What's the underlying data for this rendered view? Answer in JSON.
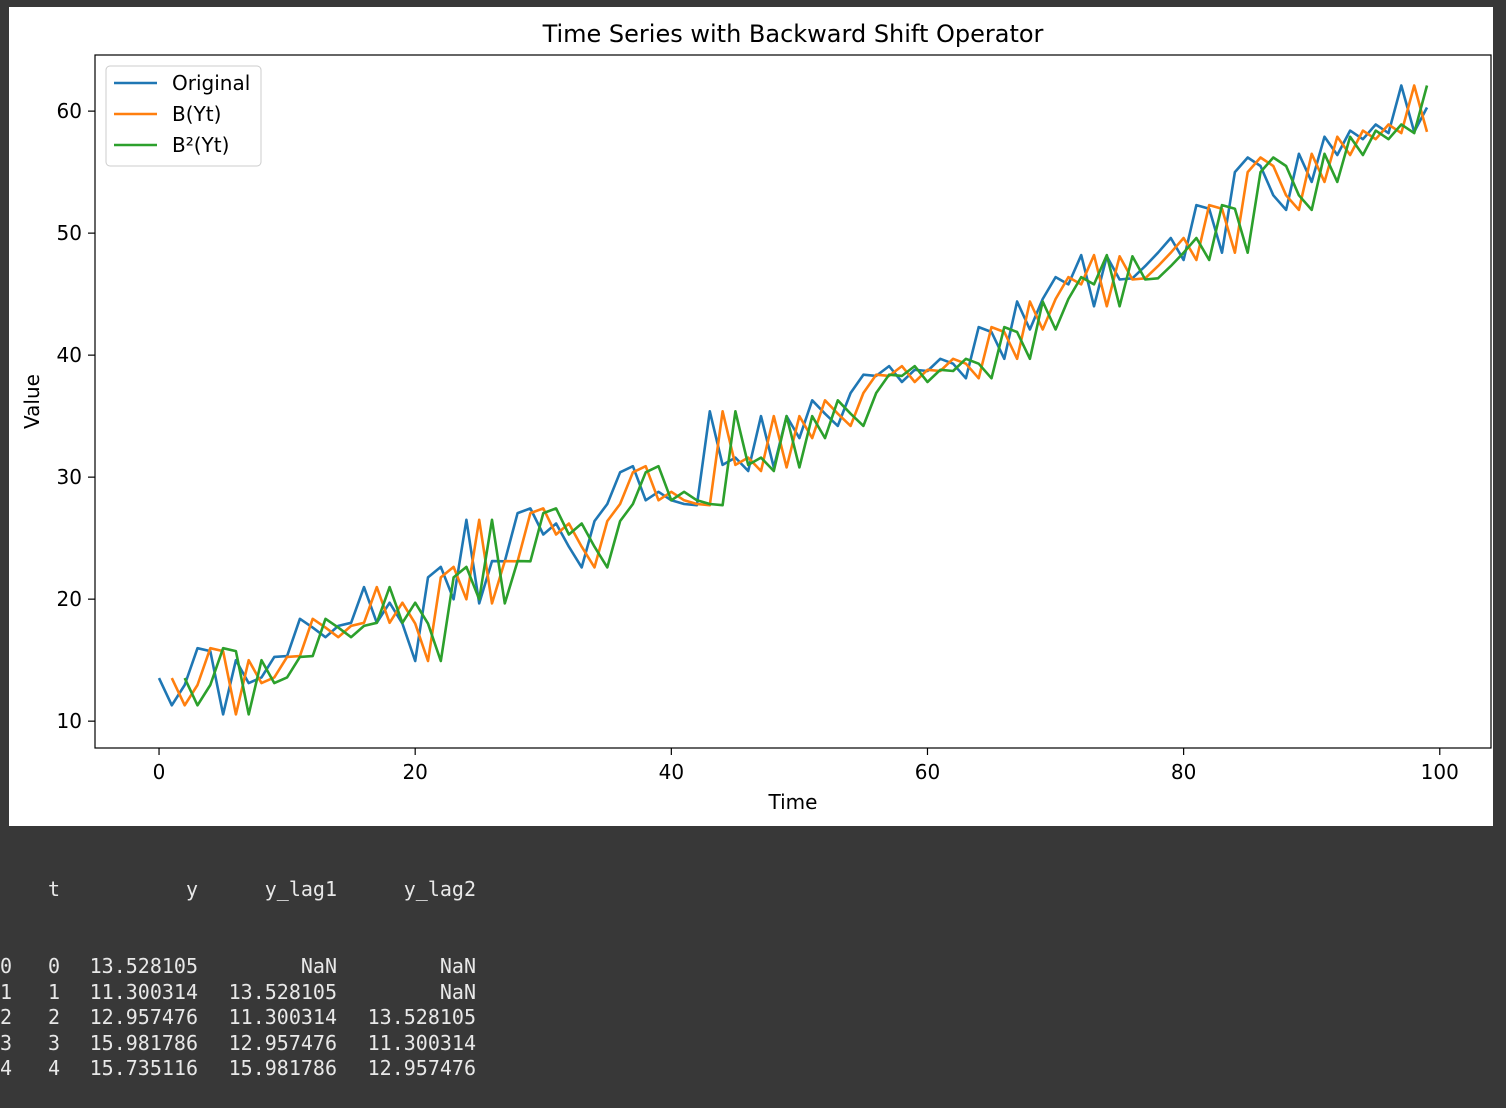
{
  "chart_data": {
    "type": "line",
    "title": "Time Series with Backward Shift Operator",
    "xlabel": "Time",
    "ylabel": "Value",
    "xlim": [
      -5,
      104
    ],
    "ylim": [
      7.8,
      64.6
    ],
    "xticks": [
      0,
      20,
      40,
      60,
      80,
      100
    ],
    "yticks": [
      10,
      20,
      30,
      40,
      50,
      60
    ],
    "grid": false,
    "legend": "upper-left",
    "series": [
      {
        "name": "Original",
        "color": "#1f77b4",
        "start": 0
      },
      {
        "name": "B(Yt)",
        "color": "#ff7f0e",
        "start": 1
      },
      {
        "name": "B²(Yt)",
        "color": "#2ca02c",
        "start": 2
      }
    ],
    "y": [
      13.53,
      11.3,
      12.96,
      15.98,
      15.74,
      10.55,
      15.0,
      13.12,
      13.59,
      15.27,
      15.33,
      18.39,
      17.67,
      16.88,
      17.81,
      18.06,
      20.99,
      18.06,
      19.71,
      18.0,
      14.93,
      21.78,
      22.64,
      19.99,
      26.5,
      19.65,
      23.12,
      23.1,
      27.05,
      27.44,
      25.3,
      26.2,
      24.3,
      22.6,
      26.4,
      27.8,
      30.4,
      30.9,
      28.1,
      28.8,
      28.1,
      27.8,
      27.7,
      35.4,
      31.0,
      31.6,
      30.5,
      35.0,
      30.8,
      35.0,
      33.2,
      36.3,
      35.2,
      34.2,
      36.9,
      38.4,
      38.3,
      39.1,
      37.8,
      38.8,
      38.7,
      39.7,
      39.3,
      38.1,
      42.3,
      41.9,
      39.7,
      44.4,
      42.1,
      44.6,
      46.4,
      45.8,
      48.2,
      44.0,
      48.1,
      46.2,
      46.3,
      47.3,
      48.4,
      49.6,
      47.8,
      52.3,
      52.0,
      48.4,
      55.0,
      56.2,
      55.5,
      53.1,
      51.9,
      56.5,
      54.2,
      57.9,
      56.4,
      58.4,
      57.7,
      58.9,
      58.2,
      62.1,
      58.3,
      60.3
    ]
  },
  "output": {
    "header": [
      "t",
      "y",
      "y_lag1",
      "y_lag2"
    ],
    "rows": [
      [
        "0",
        "0",
        "13.528105",
        "NaN",
        "NaN"
      ],
      [
        "1",
        "1",
        "11.300314",
        "13.528105",
        "NaN"
      ],
      [
        "2",
        "2",
        "12.957476",
        "11.300314",
        "13.528105"
      ],
      [
        "3",
        "3",
        "15.981786",
        "12.957476",
        "11.300314"
      ],
      [
        "4",
        "4",
        "15.735116",
        "15.981786",
        "12.957476"
      ]
    ]
  }
}
